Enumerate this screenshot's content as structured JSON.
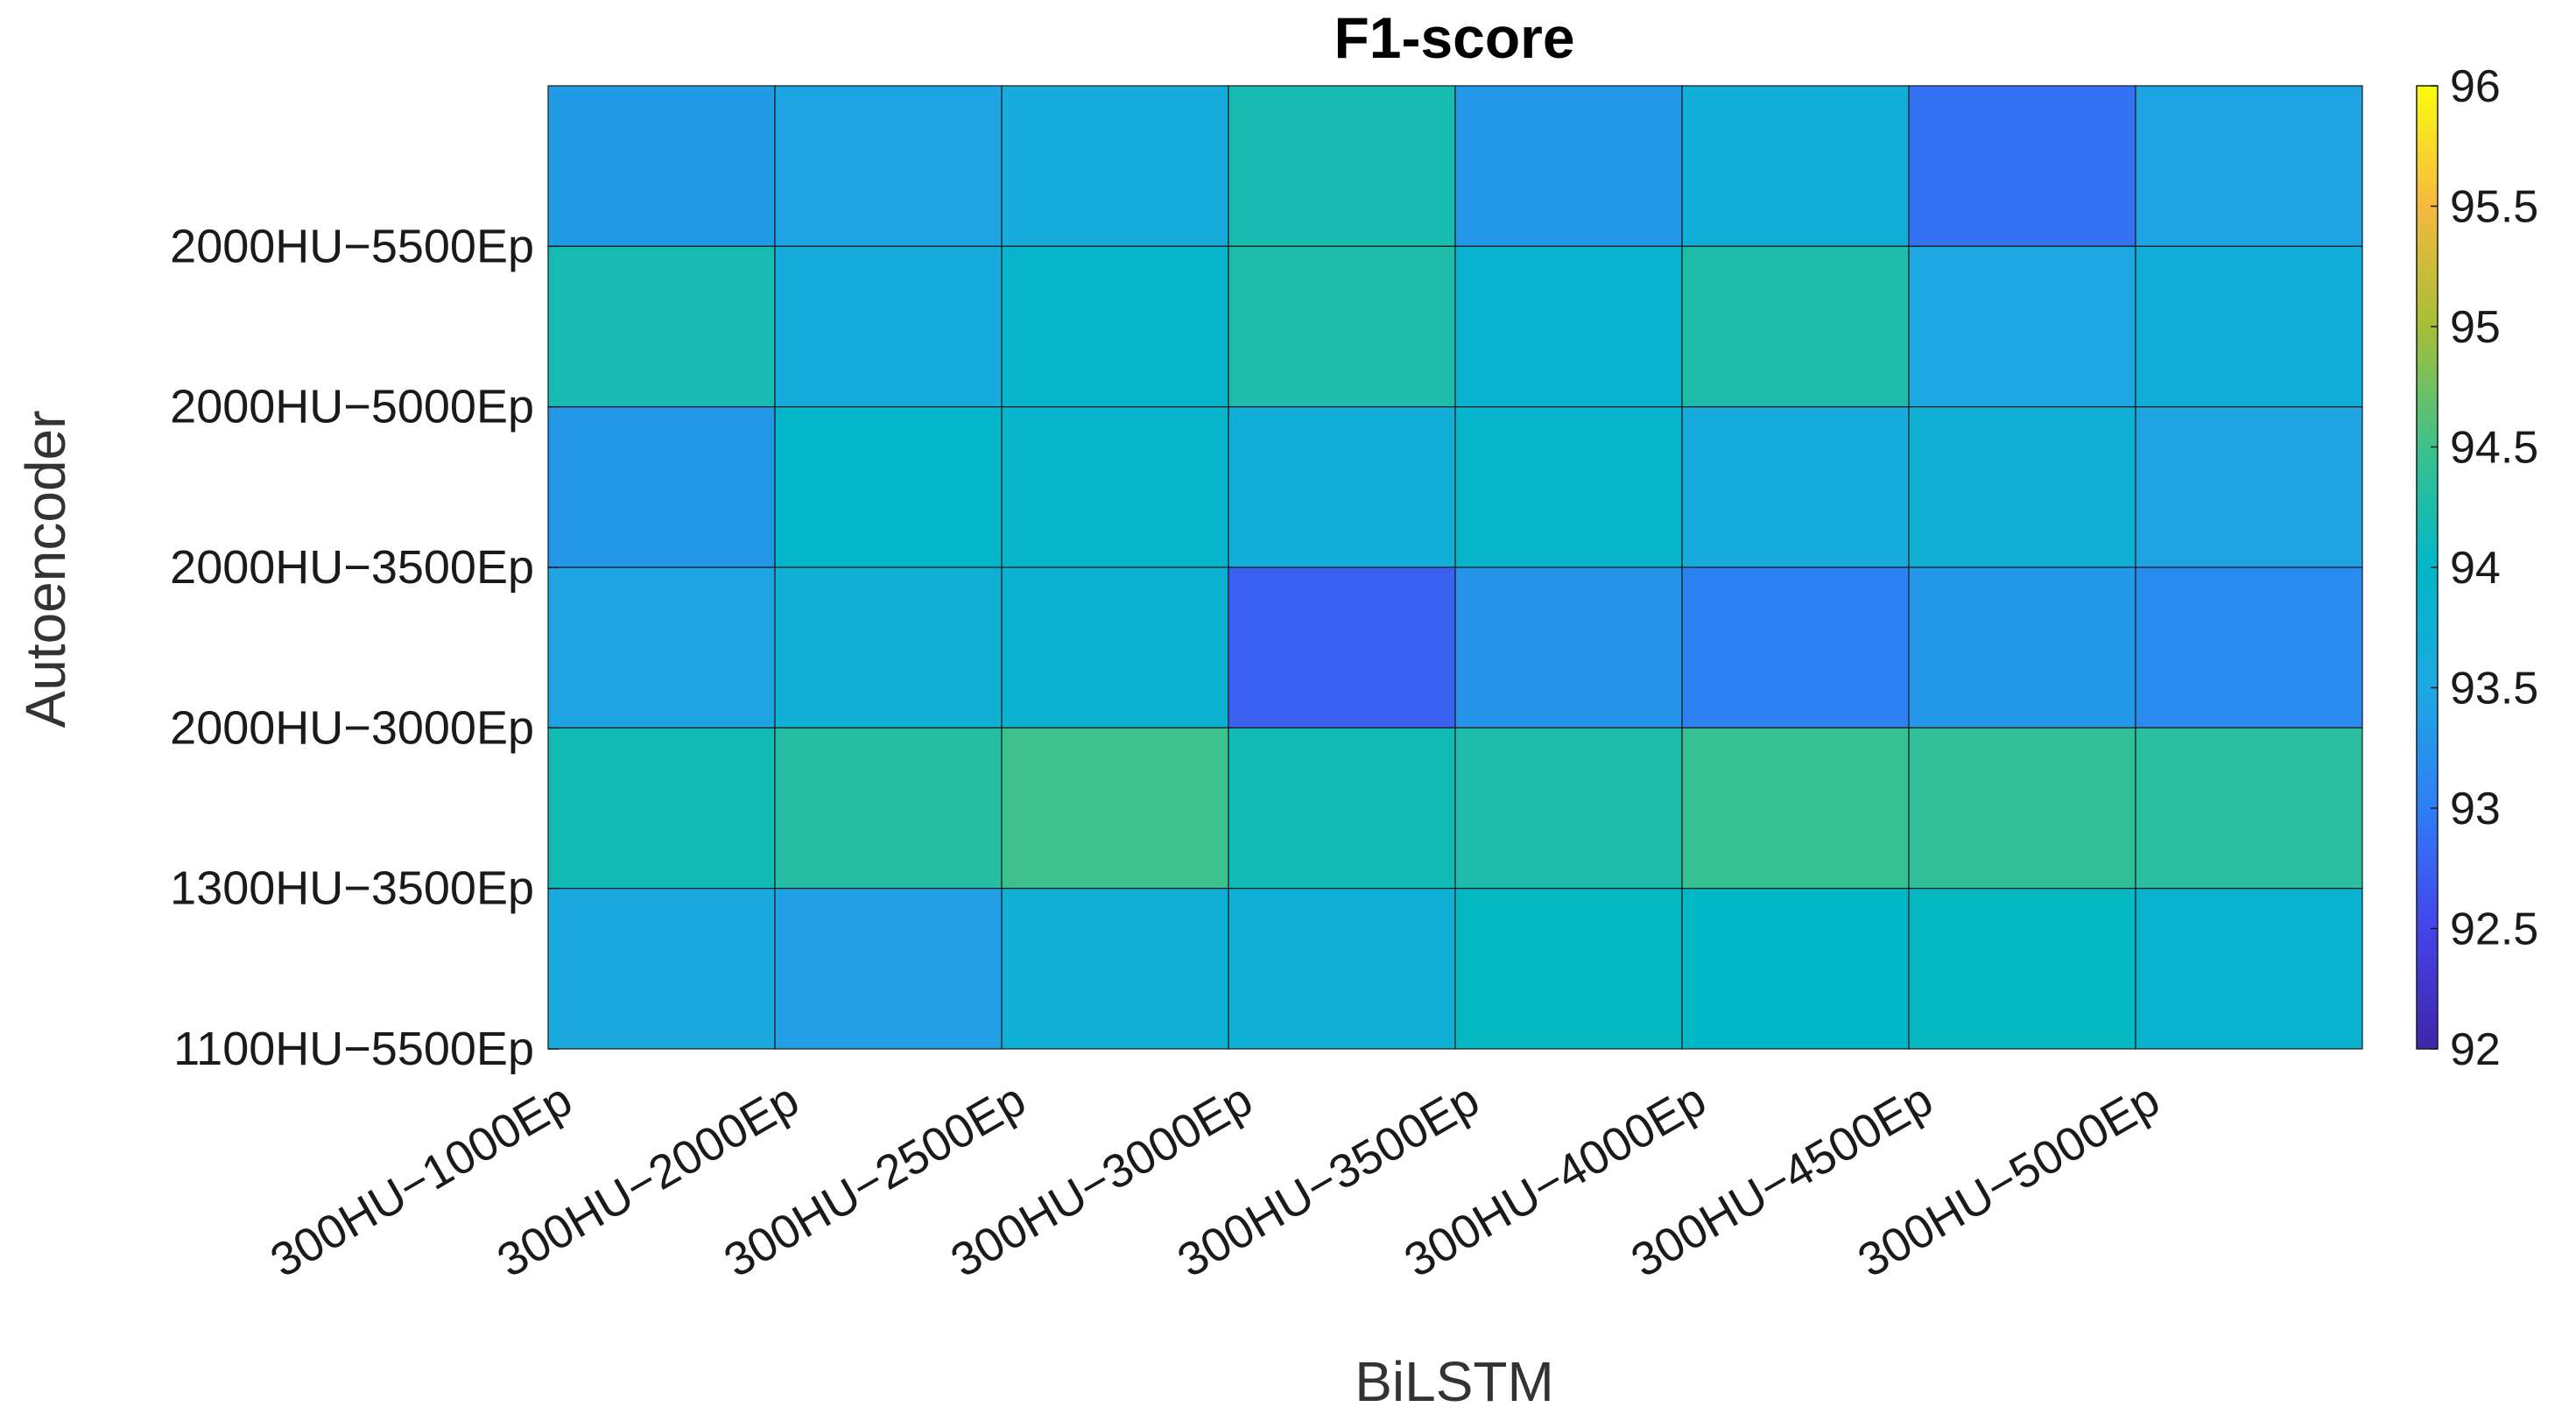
{
  "chart_data": {
    "type": "heatmap",
    "title": "F1-score",
    "xlabel": "BiLSTM",
    "ylabel": "Autoencoder",
    "x_categories": [
      "300HU−1000Ep",
      "300HU−2000Ep",
      "300HU−2500Ep",
      "300HU−3000Ep",
      "300HU−3500Ep",
      "300HU−4000Ep",
      "300HU−4500Ep",
      "300HU−5000Ep"
    ],
    "y_tick_labels": [
      "2000HU−5500Ep",
      "2000HU−5000Ep",
      "2000HU−3500Ep",
      "2000HU−3000Ep",
      "1300HU−3500Ep",
      "1100HU−5500Ep"
    ],
    "values": [
      [
        93.35,
        93.45,
        93.6,
        94.2,
        93.3,
        93.7,
        92.9,
        93.45
      ],
      [
        94.2,
        93.6,
        93.9,
        94.25,
        93.85,
        94.25,
        93.5,
        93.7
      ],
      [
        93.3,
        93.95,
        93.9,
        93.7,
        93.9,
        93.6,
        93.75,
        93.45
      ],
      [
        93.45,
        93.75,
        93.8,
        92.75,
        93.25,
        93.05,
        93.3,
        93.15
      ],
      [
        94.15,
        94.3,
        94.5,
        94.15,
        94.25,
        94.45,
        94.4,
        94.35
      ],
      [
        93.55,
        93.4,
        93.75,
        93.75,
        94.05,
        94.0,
        94.05,
        93.85
      ]
    ],
    "colorbar": {
      "range": [
        92,
        96
      ],
      "ticks": [
        "92",
        "92.5",
        "93",
        "93.5",
        "94",
        "94.5",
        "95",
        "95.5",
        "96"
      ],
      "colormap": "parula"
    }
  }
}
